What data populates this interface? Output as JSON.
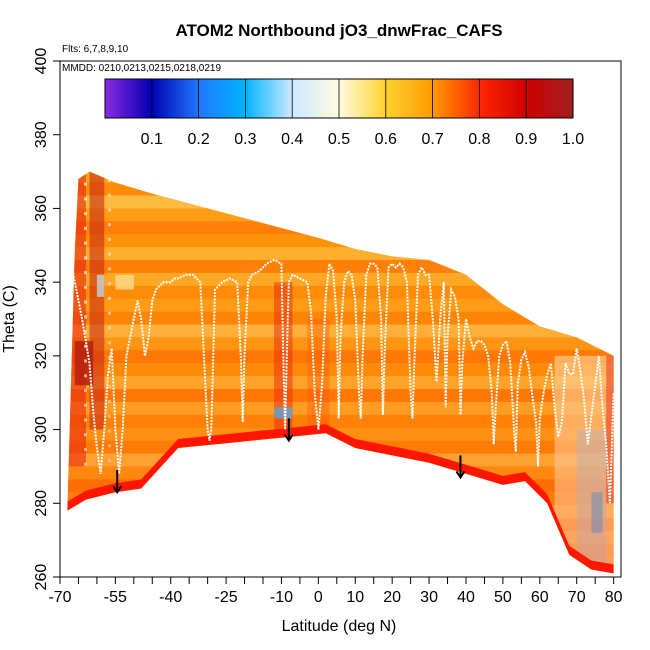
{
  "chart_data": {
    "type": "heatmap",
    "title": "ATOM2 Northbound jO3_dnwFrac_CAFS",
    "flights_label": "Flts: 6,7,8,9,10",
    "mmdd_label": "MMDD: 0210,0213,0215,0218,0219",
    "xlabel": "Latitude (deg N)",
    "ylabel": "Theta (C)",
    "xlim": [
      -70,
      82
    ],
    "ylim": [
      260,
      400
    ],
    "x_ticks": [
      {
        "value": -70,
        "label": "-70"
      },
      {
        "value": -55,
        "label": "-55"
      },
      {
        "value": -40,
        "label": "-40"
      },
      {
        "value": -25,
        "label": "-25"
      },
      {
        "value": -10,
        "label": "-10"
      },
      {
        "value": 0,
        "label": "0"
      },
      {
        "value": 10,
        "label": "10"
      },
      {
        "value": 20,
        "label": "20"
      },
      {
        "value": 30,
        "label": "30"
      },
      {
        "value": 40,
        "label": "40"
      },
      {
        "value": 50,
        "label": "50"
      },
      {
        "value": 60,
        "label": "60"
      },
      {
        "value": 70,
        "label": "70"
      },
      {
        "value": 80,
        "label": "80"
      }
    ],
    "x_minor_ticks": [
      -65,
      -60,
      -50,
      -45,
      -35,
      -30,
      -20,
      -15,
      -5,
      5,
      15,
      25,
      35,
      45,
      55,
      65,
      75
    ],
    "y_ticks": [
      {
        "value": 260,
        "label": "260"
      },
      {
        "value": 280,
        "label": "280"
      },
      {
        "value": 300,
        "label": "300"
      },
      {
        "value": 320,
        "label": "320"
      },
      {
        "value": 340,
        "label": "340"
      },
      {
        "value": 360,
        "label": "360"
      },
      {
        "value": 380,
        "label": "380"
      },
      {
        "value": 400,
        "label": "400"
      }
    ],
    "colorbar": {
      "range": [
        0.0,
        1.0
      ],
      "labels": [
        {
          "value": 0.1,
          "label": "0.1"
        },
        {
          "value": 0.2,
          "label": "0.2"
        },
        {
          "value": 0.3,
          "label": "0.3"
        },
        {
          "value": 0.4,
          "label": "0.4"
        },
        {
          "value": 0.5,
          "label": "0.5"
        },
        {
          "value": 0.6,
          "label": "0.6"
        },
        {
          "value": 0.7,
          "label": "0.7"
        },
        {
          "value": 0.8,
          "label": "0.8"
        },
        {
          "value": 0.9,
          "label": "0.9"
        },
        {
          "value": 1.0,
          "label": "1.0"
        }
      ],
      "stops": [
        "#8a2be2",
        "#0000b4",
        "#1f78ff",
        "#00b4ff",
        "#cde9ff",
        "#fffbe0",
        "#ffd230",
        "#ff9a00",
        "#ff2800",
        "#d00000",
        "#a02020"
      ]
    },
    "heatmap_series": [
      {
        "name": "domain_top",
        "x": [
          -66,
          -65,
          -62,
          -55,
          -45,
          -30,
          -15,
          0,
          10,
          20,
          30,
          40,
          50,
          60,
          70,
          80
        ],
        "y": [
          348,
          368,
          370,
          367,
          364,
          360,
          356,
          352,
          349,
          347,
          346,
          342,
          334,
          328,
          325,
          320
        ]
      },
      {
        "name": "domain_bottom",
        "x": [
          -68,
          -63,
          -55,
          -48,
          -38,
          -28,
          -18,
          -8,
          2,
          10,
          20,
          30,
          40,
          50,
          56,
          62,
          68,
          74,
          80
        ],
        "y": [
          278,
          281,
          283,
          284,
          295,
          296,
          297,
          298,
          299,
          295,
          293,
          291,
          288,
          285,
          286,
          280,
          266,
          262,
          261
        ]
      }
    ],
    "flight_tracks": [
      {
        "name": "flight-track",
        "x": [
          -67,
          -66,
          -64,
          -62,
          -61,
          -60,
          -59,
          -58,
          -57,
          -56,
          -55,
          -54,
          -53,
          -52,
          -51,
          -50,
          -49,
          -48,
          -47,
          -46,
          -45,
          -44,
          -43,
          -42,
          -41,
          -40,
          -39,
          -38,
          -36,
          -34,
          -32,
          -30,
          -29.5,
          -29,
          -28,
          -26,
          -24,
          -22,
          -21,
          -20.5,
          -20,
          -19,
          -18,
          -16,
          -14,
          -12,
          -10,
          -9.5,
          -9,
          -8.5,
          -8,
          -7,
          -5,
          -3,
          -2,
          -1,
          0,
          1,
          2,
          3,
          4,
          5,
          5.5,
          6,
          7,
          8,
          9,
          10,
          11,
          11.5,
          12,
          13,
          14,
          15,
          16,
          17,
          17.5,
          18,
          19,
          20,
          21,
          22,
          23,
          24,
          25,
          25.5,
          26,
          27,
          28,
          29,
          30,
          31,
          32,
          33,
          34,
          34.5,
          35,
          36,
          37,
          38,
          38.5,
          39,
          40,
          41,
          42,
          43,
          44,
          45,
          46,
          47,
          47.5,
          48,
          49,
          50,
          51,
          52,
          53,
          53.5,
          54,
          55,
          56,
          57,
          58,
          59,
          59.5,
          60,
          61,
          62,
          63,
          64,
          65,
          66,
          67,
          68,
          69,
          70,
          71,
          72,
          73,
          74,
          75,
          76,
          77,
          78,
          79,
          80
        ],
        "y": [
          345,
          340,
          330,
          318,
          305,
          295,
          288,
          300,
          315,
          322,
          300,
          288,
          300,
          320,
          325,
          330,
          335,
          330,
          320,
          325,
          335,
          338,
          339,
          340,
          340,
          340,
          341,
          341,
          342,
          342,
          340,
          300,
          297,
          300,
          338,
          340,
          341,
          340,
          320,
          302,
          320,
          340,
          342,
          343,
          345,
          346,
          345,
          320,
          300,
          322,
          340,
          342,
          341,
          340,
          332,
          310,
          300,
          312,
          336,
          345,
          343,
          330,
          303,
          325,
          340,
          343,
          342,
          335,
          310,
          303,
          320,
          342,
          345,
          345,
          344,
          330,
          304,
          322,
          344,
          345,
          344,
          345,
          344,
          340,
          310,
          303,
          318,
          342,
          344,
          342,
          342,
          330,
          313,
          330,
          340,
          306,
          325,
          338,
          336,
          330,
          304,
          318,
          330,
          325,
          322,
          324,
          324,
          323,
          320,
          310,
          296,
          305,
          320,
          323,
          324,
          318,
          300,
          294,
          312,
          319,
          321,
          317,
          309,
          302,
          290,
          303,
          310,
          315,
          318,
          306,
          298,
          302,
          318,
          315,
          315,
          322,
          316,
          308,
          296,
          304,
          312,
          320,
          306,
          296,
          280,
          310
        ]
      }
    ],
    "annotations": [
      {
        "type": "arrow",
        "x": -54.5,
        "y_start": 289,
        "y_end": 283
      },
      {
        "type": "arrow",
        "x": -8,
        "y_start": 303,
        "y_end": 297
      },
      {
        "type": "arrow",
        "x": 38.5,
        "y_start": 293,
        "y_end": 287
      }
    ]
  }
}
